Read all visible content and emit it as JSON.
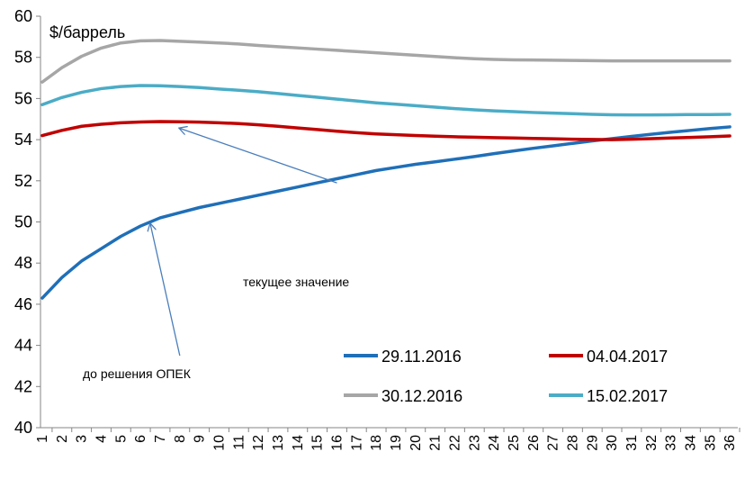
{
  "chart_data": {
    "type": "line",
    "ylabel": "$/баррель",
    "ylim": [
      40,
      60
    ],
    "yticks": [
      "40",
      "42",
      "44",
      "46",
      "48",
      "50",
      "52",
      "54",
      "56",
      "58",
      "60"
    ],
    "x": [
      "1",
      "2",
      "3",
      "4",
      "5",
      "6",
      "7",
      "8",
      "9",
      "10",
      "11",
      "12",
      "13",
      "14",
      "15",
      "16",
      "17",
      "18",
      "19",
      "20",
      "21",
      "22",
      "23",
      "24",
      "25",
      "26",
      "27",
      "28",
      "29",
      "30",
      "31",
      "32",
      "33",
      "34",
      "35",
      "36"
    ],
    "grid": false,
    "legend_position": "bottom-right",
    "series": [
      {
        "name": "29.11.2016",
        "color": "#1f6fb8",
        "values": [
          46.3,
          47.3,
          48.1,
          48.7,
          49.3,
          49.8,
          50.2,
          50.45,
          50.7,
          50.9,
          51.1,
          51.3,
          51.5,
          51.7,
          51.9,
          52.1,
          52.3,
          52.5,
          52.65,
          52.8,
          52.92,
          53.05,
          53.18,
          53.32,
          53.45,
          53.58,
          53.7,
          53.82,
          53.94,
          54.05,
          54.16,
          54.26,
          54.36,
          54.45,
          54.54,
          54.62
        ]
      },
      {
        "name": "04.04.2017",
        "color": "#c00000",
        "values": [
          54.2,
          54.45,
          54.65,
          54.75,
          54.82,
          54.86,
          54.88,
          54.87,
          54.85,
          54.82,
          54.78,
          54.72,
          54.65,
          54.57,
          54.49,
          54.41,
          54.34,
          54.28,
          54.24,
          54.2,
          54.17,
          54.14,
          54.12,
          54.1,
          54.08,
          54.06,
          54.04,
          54.02,
          54.01,
          54.0,
          54.02,
          54.05,
          54.08,
          54.11,
          54.14,
          54.18
        ]
      },
      {
        "name": "30.12.2016",
        "color": "#a6a6a6",
        "values": [
          56.8,
          57.5,
          58.05,
          58.45,
          58.7,
          58.8,
          58.82,
          58.78,
          58.74,
          58.7,
          58.65,
          58.58,
          58.52,
          58.46,
          58.4,
          58.34,
          58.28,
          58.22,
          58.16,
          58.1,
          58.04,
          57.98,
          57.93,
          57.9,
          57.88,
          57.87,
          57.86,
          57.85,
          57.84,
          57.83,
          57.83,
          57.83,
          57.83,
          57.83,
          57.83,
          57.83
        ]
      },
      {
        "name": "15.02.2017",
        "color": "#4bacc6",
        "values": [
          55.7,
          56.05,
          56.3,
          56.48,
          56.58,
          56.63,
          56.62,
          56.58,
          56.53,
          56.46,
          56.4,
          56.33,
          56.24,
          56.15,
          56.06,
          55.97,
          55.88,
          55.79,
          55.72,
          55.65,
          55.58,
          55.51,
          55.45,
          55.4,
          55.36,
          55.32,
          55.29,
          55.26,
          55.23,
          55.21,
          55.2,
          55.2,
          55.21,
          55.22,
          55.22,
          55.23
        ]
      }
    ],
    "annotations": [
      {
        "text": "текущее значение",
        "from": [
          16,
          51.9
        ],
        "to": [
          8,
          54.55
        ]
      },
      {
        "text": "до решения ОПЕК",
        "from": [
          8,
          43.5
        ],
        "to": [
          6.5,
          49.9
        ]
      }
    ]
  }
}
